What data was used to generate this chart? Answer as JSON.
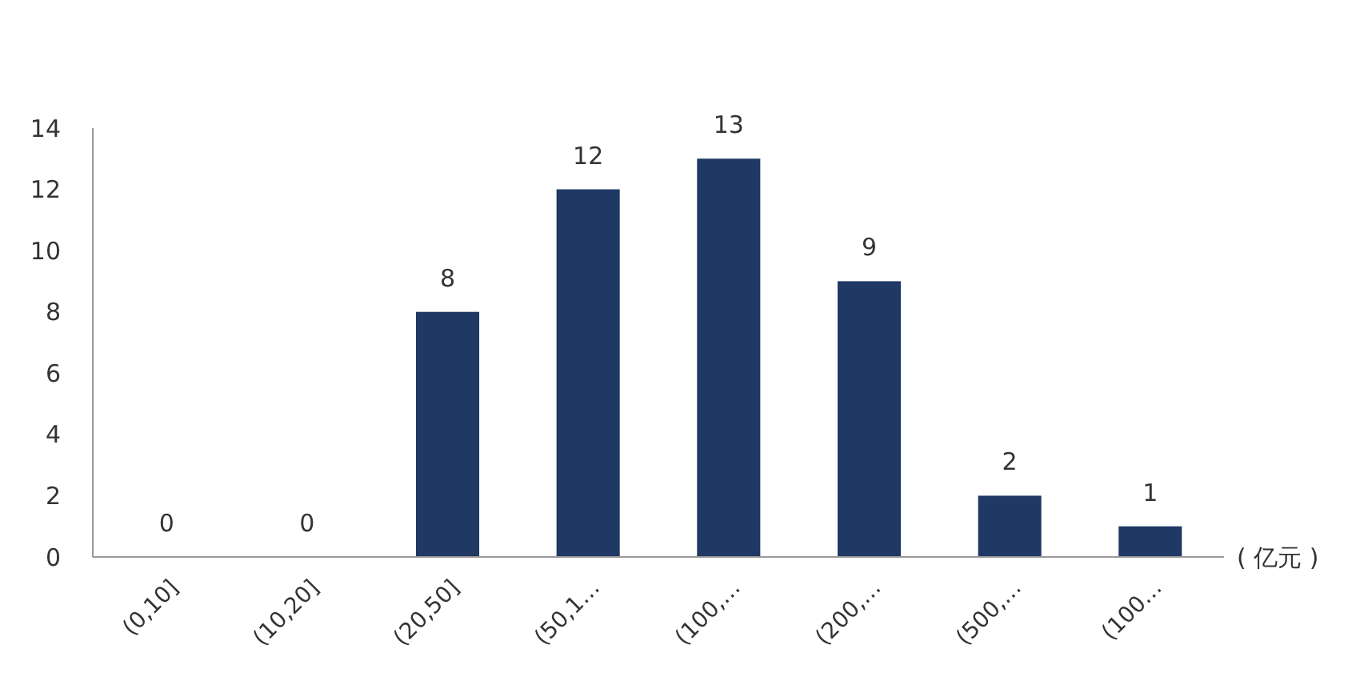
{
  "chart_data": {
    "type": "bar",
    "categories": [
      "(0,10]",
      "(10,20]",
      "(20,50]",
      "(50,1…",
      "(100,…",
      "(200,…",
      "(500,…",
      "(100…"
    ],
    "values": [
      0,
      0,
      8,
      12,
      13,
      9,
      2,
      1
    ],
    "color": "#1f3864",
    "ylim": [
      0,
      14
    ],
    "yticks": [
      0,
      2,
      4,
      6,
      8,
      10,
      12,
      14
    ],
    "grid": false,
    "data_labels": true,
    "annotations": [
      "( 亿元 )"
    ]
  }
}
